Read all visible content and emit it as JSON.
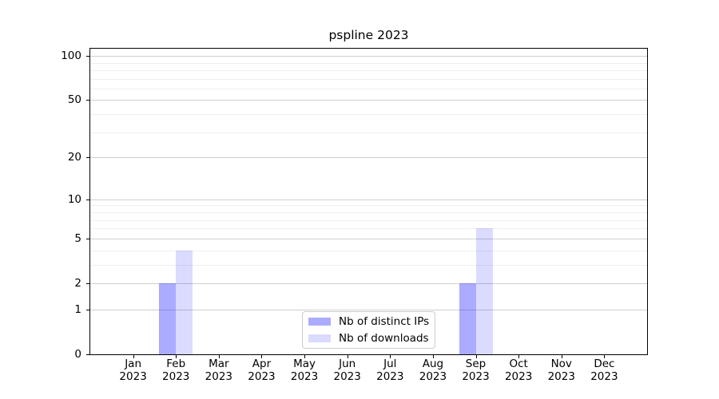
{
  "chart_data": {
    "type": "bar",
    "title": "pspline 2023",
    "categories": [
      "Jan 2023",
      "Feb 2023",
      "Mar 2023",
      "Apr 2023",
      "May 2023",
      "Jun 2023",
      "Jul 2023",
      "Aug 2023",
      "Sep 2023",
      "Oct 2023",
      "Nov 2023",
      "Dec 2023"
    ],
    "series": [
      {
        "name": "Nb of distinct IPs",
        "color": "rgba(0,0,255,0.33)",
        "values": [
          0,
          2,
          0,
          0,
          0,
          0,
          0,
          0,
          2,
          0,
          0,
          0
        ]
      },
      {
        "name": "Nb of downloads",
        "color": "rgba(0,0,255,0.14)",
        "values": [
          0,
          4,
          0,
          0,
          0,
          0,
          0,
          0,
          6,
          0,
          0,
          0
        ]
      }
    ],
    "yscale": "log1p",
    "ylim": [
      0,
      112
    ],
    "yticks": [
      0,
      1,
      2,
      5,
      10,
      20,
      50,
      100
    ],
    "yticks_minor": [
      3,
      4,
      6,
      7,
      8,
      9,
      30,
      40,
      60,
      70,
      80,
      90
    ],
    "grid": "both",
    "legend_position": "lower center",
    "colors": {
      "spine": "#000000",
      "major_grid": "#cfcfcf",
      "minor_grid": "#efefef"
    }
  }
}
